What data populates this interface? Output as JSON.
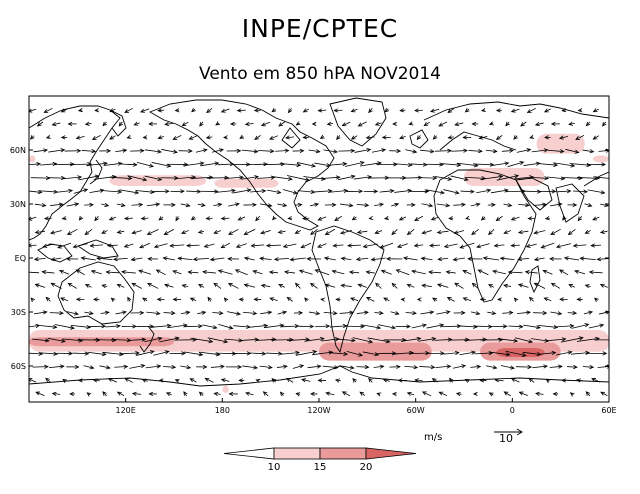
{
  "header": {
    "title": "INPE/CPTEC",
    "subtitle": "Vento em 850 hPA NOV2014"
  },
  "map": {
    "projection": "cylindrical",
    "lon_range": [
      60,
      420
    ],
    "lat_range": [
      -80,
      90
    ],
    "lat_ticks": [
      {
        "lat": 60,
        "label": "60N"
      },
      {
        "lat": 30,
        "label": "30N"
      },
      {
        "lat": 0,
        "label": "EQ"
      },
      {
        "lat": -30,
        "label": "30S"
      },
      {
        "lat": -60,
        "label": "60S"
      }
    ],
    "lon_ticks": [
      {
        "lon": 120,
        "label": "120E"
      },
      {
        "lon": 180,
        "label": "180"
      },
      {
        "lon": 240,
        "label": "120W"
      },
      {
        "lon": 300,
        "label": "60W"
      },
      {
        "lon": 360,
        "label": "0"
      },
      {
        "lon": 420,
        "label": "60E"
      }
    ],
    "wind_speed_regions": [
      {
        "lon": [
          60,
          420
        ],
        "lat": [
          -52,
          -40
        ],
        "speed": 12
      },
      {
        "lon": [
          60,
          150
        ],
        "lat": [
          -49,
          -44
        ],
        "speed": 16
      },
      {
        "lon": [
          170,
          230
        ],
        "lat": [
          -50,
          -44
        ],
        "speed": 13
      },
      {
        "lon": [
          240,
          310
        ],
        "lat": [
          -57,
          -47
        ],
        "speed": 15
      },
      {
        "lon": [
          265,
          300
        ],
        "lat": [
          -55,
          -50
        ],
        "speed": 17
      },
      {
        "lon": [
          340,
          390
        ],
        "lat": [
          -57,
          -47
        ],
        "speed": 17
      },
      {
        "lon": [
          350,
          380
        ],
        "lat": [
          -55,
          -50
        ],
        "speed": 21
      },
      {
        "lon": [
          390,
          420
        ],
        "lat": [
          -52,
          -44
        ],
        "speed": 13
      },
      {
        "lon": [
          330,
          380
        ],
        "lat": [
          40,
          50
        ],
        "speed": 13
      },
      {
        "lon": [
          110,
          170
        ],
        "lat": [
          40,
          46
        ],
        "speed": 12
      },
      {
        "lon": [
          175,
          215
        ],
        "lat": [
          39,
          44
        ],
        "speed": 11
      },
      {
        "lon": [
          60,
          64
        ],
        "lat": [
          53,
          57
        ],
        "speed": 11
      },
      {
        "lon": [
          375,
          405
        ],
        "lat": [
          58,
          69
        ],
        "speed": 13
      },
      {
        "lon": [
          410,
          420
        ],
        "lat": [
          53,
          57
        ],
        "speed": 11
      },
      {
        "lon": [
          180,
          184
        ],
        "lat": [
          -75,
          -71
        ],
        "speed": 11
      }
    ],
    "wind_units": "m/s",
    "reference_vector": 10
  },
  "legend": {
    "bins": [
      {
        "label": "10",
        "color": "#f7cfcf"
      },
      {
        "label": "15",
        "color": "#e99a9a"
      },
      {
        "label": "20",
        "color": "#d86464"
      }
    ],
    "below_color": "#ffffff"
  },
  "colors": {
    "land_outline": "#000000",
    "vectors": "#000000"
  }
}
